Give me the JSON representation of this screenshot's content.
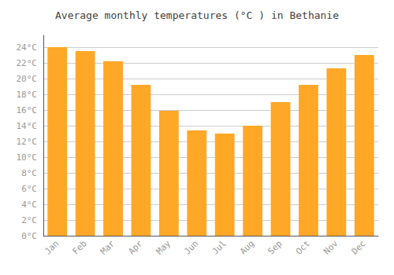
{
  "chart_data": {
    "type": "bar",
    "title": "Average monthly temperatures (°C ) in Bethanie",
    "categories": [
      "Jan",
      "Feb",
      "Mar",
      "Apr",
      "May",
      "Jun",
      "Jul",
      "Aug",
      "Sep",
      "Oct",
      "Nov",
      "Dec"
    ],
    "values": [
      24.0,
      23.5,
      22.2,
      19.2,
      15.9,
      13.4,
      13.0,
      14.0,
      17.0,
      19.2,
      21.3,
      23.0
    ],
    "color": "#FFA726",
    "ylim": [
      0,
      25.5
    ],
    "yticks": [
      {
        "value": 0,
        "label": "0°C"
      },
      {
        "value": 2,
        "label": "2°C"
      },
      {
        "value": 4,
        "label": "4°C"
      },
      {
        "value": 6,
        "label": "6°C"
      },
      {
        "value": 8,
        "label": "8°C"
      },
      {
        "value": 10,
        "label": "10°C"
      },
      {
        "value": 12,
        "label": "12°C"
      },
      {
        "value": 14,
        "label": "14°C"
      },
      {
        "value": 16,
        "label": "16°C"
      },
      {
        "value": 18,
        "label": "18°C"
      },
      {
        "value": 20,
        "label": "20°C"
      },
      {
        "value": 22,
        "label": "22°C"
      },
      {
        "value": 24,
        "label": "24°C"
      }
    ],
    "grid": true
  }
}
